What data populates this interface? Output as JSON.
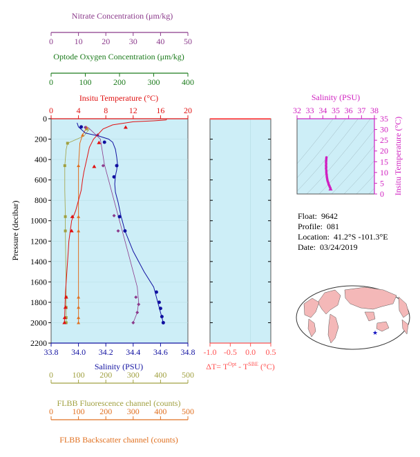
{
  "colors": {
    "nitrate": "#8b3a8b",
    "oxygen": "#1a7a1a",
    "temperature": "#e01010",
    "salinity": "#1010a0",
    "fluorescence": "#a0a040",
    "backscatter": "#e07020",
    "magenta": "#d020c0",
    "panel_bg": "#cdeef7"
  },
  "info": {
    "float_label": "Float:",
    "float": "9642",
    "profile_label": "Profile:",
    "profile": "081",
    "location_label": "Location:",
    "location": "41.2°S  -101.3°E",
    "date_label": "Date:",
    "date": "03/24/2019"
  },
  "chart_data": [
    {
      "type": "line",
      "panel": "main profile",
      "ylabel": "Pressure (decibar)",
      "ylim": [
        2200,
        0
      ],
      "y_ticks": [
        0,
        200,
        400,
        600,
        800,
        1000,
        1200,
        1400,
        1600,
        1800,
        2000,
        2200
      ],
      "axes": {
        "nitrate": {
          "label": "Nitrate Concentration (μm/kg)",
          "lim": [
            0,
            50
          ],
          "ticks": [
            0,
            10,
            20,
            30,
            40,
            50
          ]
        },
        "oxygen": {
          "label": "Optode Oxygen Concentration (μm/kg)",
          "lim": [
            0,
            400
          ],
          "ticks": [
            0,
            100,
            200,
            300,
            400
          ]
        },
        "temperature": {
          "label": "Insitu Temperature (°C)",
          "lim": [
            0,
            20
          ],
          "ticks": [
            0,
            4,
            8,
            12,
            16,
            20
          ]
        },
        "salinity": {
          "label": "Salinity (PSU)",
          "lim": [
            33.8,
            34.8
          ],
          "ticks": [
            "33.8",
            "34.0",
            "34.2",
            "34.4",
            "34.6",
            "34.8"
          ]
        },
        "fluorescence": {
          "label": "FLBB Fluorescence channel (counts)",
          "lim": [
            0,
            500
          ],
          "ticks": [
            0,
            100,
            200,
            300,
            400,
            500
          ]
        },
        "backscatter": {
          "label": "FLBB Backscatter channel (counts)",
          "lim": [
            0,
            500
          ],
          "ticks": [
            0,
            100,
            200,
            300,
            400,
            500
          ]
        }
      },
      "series": [
        {
          "axis": "temperature",
          "line": [
            [
              16.9,
              5
            ],
            [
              16.8,
              12
            ],
            [
              15,
              20
            ],
            [
              12,
              30
            ],
            [
              9,
              60
            ],
            [
              7.6,
              100
            ],
            [
              6.2,
              200
            ],
            [
              5.6,
              280
            ],
            [
              5.2,
              400
            ],
            [
              4.8,
              520
            ],
            [
              4.6,
              600
            ],
            [
              4.4,
              700
            ],
            [
              4,
              800
            ],
            [
              3.6,
              900
            ],
            [
              3.3,
              950
            ],
            [
              3,
              1000
            ],
            [
              2.8,
              1100
            ],
            [
              2.6,
              1200
            ],
            [
              2.5,
              1300
            ],
            [
              2.4,
              1400
            ],
            [
              2.3,
              1500
            ],
            [
              2.2,
              1600
            ],
            [
              2.1,
              1700
            ],
            [
              2.05,
              1800
            ],
            [
              2.0,
              1900
            ],
            [
              1.95,
              2000
            ]
          ],
          "points": [
            [
              10.9,
              85
            ],
            [
              7,
              235
            ],
            [
              6.3,
              470
            ],
            [
              3.1,
              960
            ],
            [
              3.0,
              1100
            ],
            [
              2.2,
              1750
            ],
            [
              2.1,
              1850
            ],
            [
              2.0,
              1950
            ],
            [
              1.95,
              2000
            ]
          ]
        },
        {
          "axis": "salinity",
          "line": [
            [
              33.99,
              40
            ],
            [
              34.0,
              80
            ],
            [
              34.05,
              140
            ],
            [
              34.15,
              170
            ],
            [
              34.22,
              200
            ],
            [
              34.25,
              230
            ],
            [
              34.27,
              300
            ],
            [
              34.28,
              380
            ],
            [
              34.285,
              440
            ],
            [
              34.28,
              500
            ],
            [
              34.27,
              560
            ],
            [
              34.265,
              640
            ],
            [
              34.27,
              720
            ],
            [
              34.29,
              820
            ],
            [
              34.31,
              950
            ],
            [
              34.34,
              1100
            ],
            [
              34.4,
              1300
            ],
            [
              34.48,
              1500
            ],
            [
              34.55,
              1650
            ],
            [
              34.58,
              1800
            ],
            [
              34.6,
              1900
            ],
            [
              34.62,
              2000
            ]
          ],
          "points": [
            [
              34.02,
              80
            ],
            [
              34.19,
              230
            ],
            [
              34.28,
              460
            ],
            [
              34.26,
              570
            ],
            [
              34.3,
              960
            ],
            [
              34.34,
              1100
            ],
            [
              34.57,
              1700
            ],
            [
              34.59,
              1800
            ],
            [
              34.6,
              1860
            ],
            [
              34.61,
              1940
            ],
            [
              34.62,
              2000
            ]
          ]
        },
        {
          "axis": "nitrate",
          "line": [
            [
              13.5,
              85
            ],
            [
              18,
              200
            ],
            [
              19.5,
              450
            ],
            [
              22,
              700
            ],
            [
              24,
              900
            ],
            [
              26,
              1100
            ],
            [
              28,
              1300
            ],
            [
              30,
              1500
            ],
            [
              31.5,
              1650
            ],
            [
              32,
              1800
            ],
            [
              31.5,
              1900
            ],
            [
              30,
              2000
            ]
          ],
          "points": [
            [
              12.5,
              85
            ],
            [
              17,
              160
            ],
            [
              19,
              460
            ],
            [
              23,
              950
            ],
            [
              24.5,
              1100
            ],
            [
              31,
              1750
            ],
            [
              32,
              1820
            ],
            [
              31.5,
              1900
            ],
            [
              30,
              2000
            ]
          ]
        },
        {
          "axis": "fluorescence",
          "line": [
            [
              140,
              100
            ],
            [
              120,
              170
            ],
            [
              60,
              240
            ],
            [
              55,
              300
            ],
            [
              50,
              460
            ],
            [
              50,
              700
            ],
            [
              52,
              960
            ],
            [
              52,
              1100
            ],
            [
              55,
              1750
            ],
            [
              55,
              1850
            ],
            [
              55,
              2000
            ]
          ],
          "points": [
            [
              130,
              100
            ],
            [
              60,
              240
            ],
            [
              50,
              460
            ],
            [
              52,
              960
            ],
            [
              52,
              1100
            ],
            [
              55,
              1750
            ],
            [
              55,
              1850
            ],
            [
              55,
              1950
            ],
            [
              55,
              2000
            ]
          ]
        },
        {
          "axis": "backscatter",
          "line": [
            [
              130,
              85
            ],
            [
              115,
              160
            ],
            [
              105,
              240
            ],
            [
              100,
              460
            ],
            [
              100,
              960
            ],
            [
              100,
              1100
            ],
            [
              100,
              1750
            ],
            [
              100,
              1850
            ],
            [
              100,
              2000
            ]
          ],
          "points": [
            [
              130,
              85
            ],
            [
              115,
              160
            ],
            [
              100,
              460
            ],
            [
              100,
              960
            ],
            [
              100,
              1100
            ],
            [
              100,
              1750
            ],
            [
              100,
              1850
            ],
            [
              100,
              1950
            ],
            [
              100,
              2000
            ]
          ]
        }
      ]
    },
    {
      "type": "line",
      "panel": "temperature difference",
      "xlabel": "ΔT= T",
      "xlabel_sup1": "Opt",
      "xlabel_mid": " - T",
      "xlabel_sup2": "SBE",
      "xlabel_end": " (°C)",
      "xlim": [
        -1.0,
        0.5
      ],
      "x_ticks": [
        "-1.0",
        "-0.5",
        "0.0",
        "0.5"
      ],
      "series": [
        {
          "line": [
            [
              0.5,
              2
            ],
            [
              -1.0,
              2
            ]
          ]
        }
      ]
    },
    {
      "type": "scatter",
      "panel": "T-S",
      "title": "Salinity (PSU)",
      "xlim": [
        32,
        38
      ],
      "x_ticks": [
        "32",
        "33",
        "34",
        "35",
        "36",
        "37",
        "38"
      ],
      "ylabel": "Insitu Temperature (°C)",
      "ylim": [
        0,
        35
      ],
      "y_ticks": [
        "0",
        "5",
        "10",
        "15",
        "20",
        "25",
        "30",
        "35"
      ],
      "points": [
        [
          34.28,
          17
        ],
        [
          34.27,
          16.3
        ],
        [
          34.26,
          15.5
        ],
        [
          34.25,
          14.8
        ],
        [
          34.26,
          14
        ],
        [
          34.25,
          13.2
        ],
        [
          34.26,
          12.5
        ],
        [
          34.25,
          11.8
        ],
        [
          34.27,
          11
        ],
        [
          34.27,
          10.2
        ],
        [
          34.28,
          9.5
        ],
        [
          34.3,
          8.8
        ],
        [
          34.31,
          8
        ],
        [
          34.33,
          7.3
        ],
        [
          34.35,
          6.6
        ],
        [
          34.38,
          5.9
        ],
        [
          34.42,
          5.2
        ],
        [
          34.45,
          4.5
        ],
        [
          34.5,
          3.9
        ],
        [
          34.54,
          3.3
        ],
        [
          34.58,
          2.8
        ],
        [
          34.6,
          2.3
        ]
      ]
    }
  ]
}
